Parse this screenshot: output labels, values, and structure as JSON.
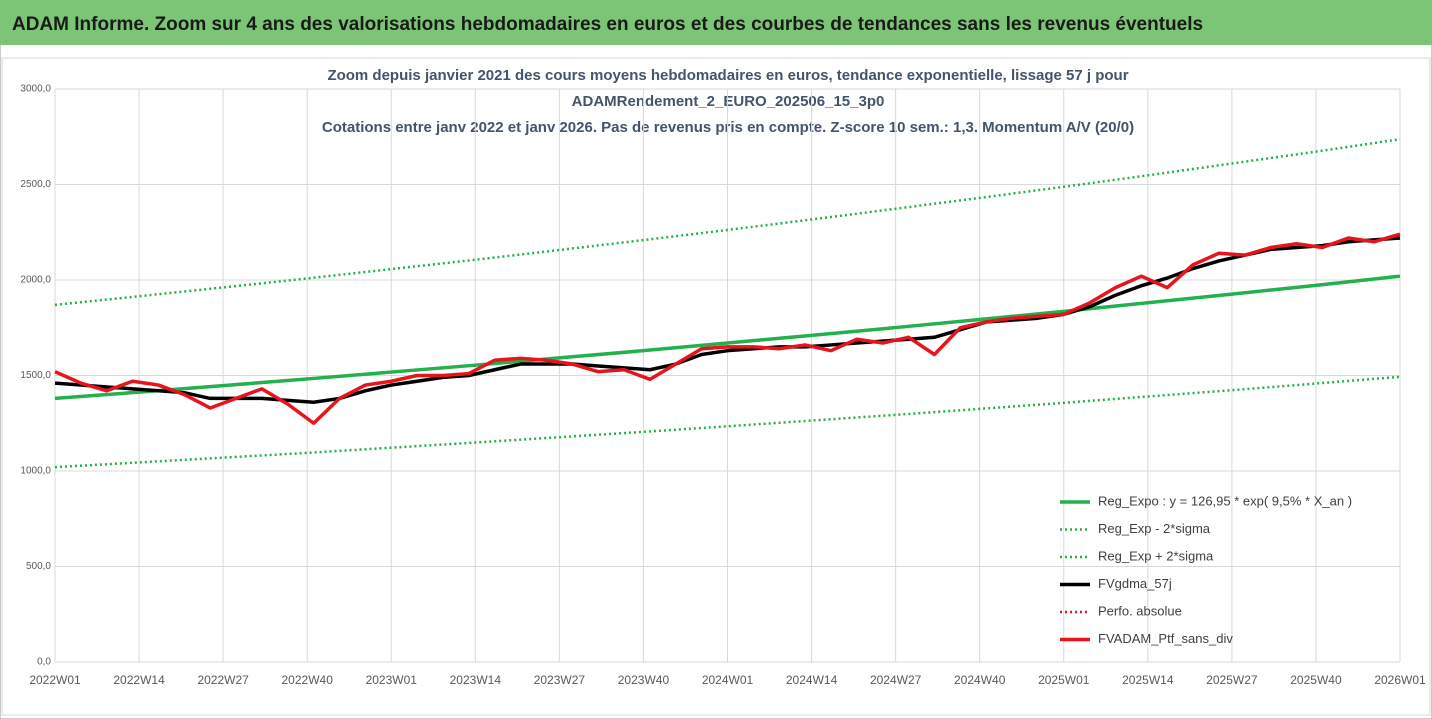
{
  "header": {
    "title": "ADAM Informe. Zoom sur 4 ans des valorisations hebdomadaires en euros et des courbes de tendances sans les revenus éventuels"
  },
  "chart_data": {
    "type": "line",
    "title": [
      "Zoom depuis janvier 2021 des cours moyens hebdomadaires  en euros, tendance exponentielle, lissage 57 j pour",
      "ADAMRendement_2_EURO_202506_15_3p0",
      "Cotations entre janv 2022 et janv 2026. Pas de revenus pris en compte. Z-score 10 sem.: 1,3. Momentum A/V (20/0)"
    ],
    "xlim": [
      0,
      208
    ],
    "xticks": [
      {
        "value": 0,
        "label": "2022W01"
      },
      {
        "value": 13,
        "label": "2022W14"
      },
      {
        "value": 26,
        "label": "2022W27"
      },
      {
        "value": 39,
        "label": "2022W40"
      },
      {
        "value": 52,
        "label": "2023W01"
      },
      {
        "value": 65,
        "label": "2023W14"
      },
      {
        "value": 78,
        "label": "2023W27"
      },
      {
        "value": 91,
        "label": "2023W40"
      },
      {
        "value": 104,
        "label": "2024W01"
      },
      {
        "value": 117,
        "label": "2024W14"
      },
      {
        "value": 130,
        "label": "2024W27"
      },
      {
        "value": 143,
        "label": "2024W40"
      },
      {
        "value": 156,
        "label": "2025W01"
      },
      {
        "value": 169,
        "label": "2025W14"
      },
      {
        "value": 182,
        "label": "2025W27"
      },
      {
        "value": 195,
        "label": "2025W40"
      },
      {
        "value": 208,
        "label": "2026W01"
      }
    ],
    "ylim": [
      0,
      3000
    ],
    "yticks": [
      {
        "value": 0,
        "label": "0,0"
      },
      {
        "value": 500,
        "label": "500,0"
      },
      {
        "value": 1000,
        "label": "1000,0"
      },
      {
        "value": 1500,
        "label": "1500,0"
      },
      {
        "value": 2000,
        "label": "2000,0"
      },
      {
        "value": 2500,
        "label": "2500,0"
      },
      {
        "value": 3000,
        "label": "3000,0"
      }
    ],
    "grid": true,
    "legend": "lower right",
    "series": [
      {
        "name": "Reg_Expo : y = 126,95 * exp( 9,5% *  X_an )",
        "color": "#22b14c",
        "style": "solid",
        "x": [
          0,
          13,
          26,
          39,
          52,
          65,
          78,
          91,
          104,
          117,
          130,
          143,
          156,
          169,
          182,
          195,
          208
        ],
        "values": [
          1380,
          1413,
          1447,
          1482,
          1518,
          1554,
          1592,
          1630,
          1670,
          1710,
          1751,
          1793,
          1836,
          1881,
          1926,
          1972,
          2020
        ]
      },
      {
        "name": "Reg_Exp - 2*sigma",
        "color": "#22b14c",
        "style": "dotted",
        "x": [
          0,
          13,
          26,
          39,
          52,
          65,
          78,
          91,
          104,
          117,
          130,
          143,
          156,
          169,
          182,
          195,
          208
        ],
        "values": [
          1020,
          1045,
          1070,
          1095,
          1122,
          1149,
          1177,
          1205,
          1234,
          1264,
          1294,
          1325,
          1357,
          1390,
          1423,
          1458,
          1493
        ]
      },
      {
        "name": "Reg_Exp + 2*sigma",
        "color": "#22b14c",
        "style": "dotted",
        "x": [
          0,
          13,
          26,
          39,
          52,
          65,
          78,
          91,
          104,
          117,
          130,
          143,
          156,
          169,
          182,
          195,
          208
        ],
        "values": [
          1870,
          1915,
          1961,
          2008,
          2057,
          2106,
          2157,
          2209,
          2262,
          2317,
          2373,
          2430,
          2488,
          2548,
          2610,
          2672,
          2737
        ]
      },
      {
        "name": "FVgdma_57j",
        "color": "#000000",
        "style": "solid",
        "x": [
          0,
          4,
          8,
          12,
          16,
          20,
          24,
          28,
          32,
          36,
          40,
          44,
          48,
          52,
          56,
          60,
          64,
          68,
          72,
          76,
          80,
          84,
          88,
          92,
          96,
          100,
          104,
          108,
          112,
          116,
          120,
          124,
          128,
          132,
          136,
          140,
          144,
          148,
          152,
          156,
          160,
          164,
          168,
          172,
          176,
          180,
          184,
          188,
          192,
          196,
          200,
          204,
          208
        ],
        "values": [
          1460,
          1450,
          1440,
          1430,
          1420,
          1410,
          1380,
          1380,
          1380,
          1370,
          1360,
          1380,
          1420,
          1450,
          1470,
          1490,
          1500,
          1530,
          1560,
          1560,
          1560,
          1550,
          1540,
          1530,
          1560,
          1610,
          1630,
          1640,
          1650,
          1650,
          1660,
          1670,
          1680,
          1690,
          1700,
          1740,
          1780,
          1790,
          1800,
          1820,
          1860,
          1920,
          1970,
          2010,
          2060,
          2100,
          2130,
          2160,
          2170,
          2180,
          2200,
          2210,
          2220
        ]
      },
      {
        "name": "Perfo. absolue",
        "color": "#e8141c",
        "style": "dotted",
        "x": [
          0,
          208
        ],
        "values": [
          null,
          null
        ]
      },
      {
        "name": "FVADAM_Ptf_sans_div",
        "color": "#e8141c",
        "style": "solid",
        "x": [
          0,
          4,
          8,
          12,
          16,
          20,
          24,
          28,
          32,
          36,
          40,
          44,
          48,
          52,
          56,
          60,
          64,
          68,
          72,
          76,
          80,
          84,
          88,
          92,
          96,
          100,
          104,
          108,
          112,
          116,
          120,
          124,
          128,
          132,
          136,
          140,
          144,
          148,
          152,
          156,
          160,
          164,
          168,
          172,
          176,
          180,
          184,
          188,
          192,
          196,
          200,
          204,
          208
        ],
        "values": [
          1520,
          1460,
          1420,
          1470,
          1450,
          1400,
          1330,
          1380,
          1430,
          1350,
          1250,
          1380,
          1450,
          1470,
          1500,
          1500,
          1510,
          1580,
          1590,
          1580,
          1560,
          1520,
          1530,
          1480,
          1560,
          1640,
          1650,
          1650,
          1640,
          1660,
          1630,
          1690,
          1670,
          1700,
          1610,
          1750,
          1780,
          1800,
          1810,
          1820,
          1880,
          1960,
          2020,
          1960,
          2080,
          2140,
          2130,
          2170,
          2190,
          2170,
          2220,
          2200,
          2240
        ]
      }
    ]
  }
}
